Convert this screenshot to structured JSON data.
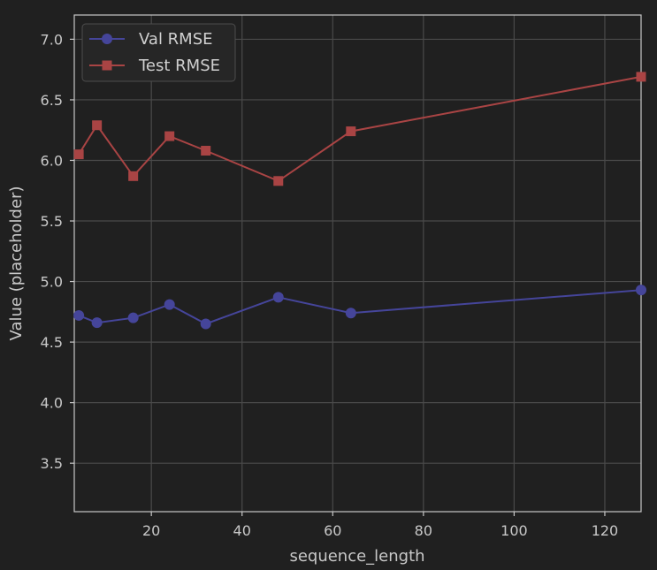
{
  "chart_data": {
    "type": "line",
    "xlabel": "sequence_length",
    "ylabel": "Value (placeholder)",
    "xlim": [
      3,
      128
    ],
    "ylim": [
      3.1,
      7.2
    ],
    "xticks": [
      20,
      40,
      60,
      80,
      100,
      120
    ],
    "yticks": [
      3.5,
      4.0,
      4.5,
      5.0,
      5.5,
      6.0,
      6.5,
      7.0
    ],
    "ytick_labels": [
      "3.5",
      "4.0",
      "4.5",
      "5.0",
      "5.5",
      "6.0",
      "6.5",
      "7.0"
    ],
    "grid": true,
    "legend_position": "top-left",
    "series": [
      {
        "name": "Val RMSE",
        "color": "#45459a",
        "marker": "circle",
        "x": [
          4,
          8,
          16,
          24,
          32,
          48,
          64,
          128
        ],
        "y": [
          4.72,
          4.66,
          4.7,
          4.81,
          4.65,
          4.87,
          4.74,
          4.93
        ]
      },
      {
        "name": "Test RMSE",
        "color": "#a94444",
        "marker": "square",
        "x": [
          4,
          8,
          16,
          24,
          32,
          48,
          64,
          128
        ],
        "y": [
          6.05,
          6.29,
          5.87,
          6.2,
          6.08,
          5.83,
          6.24,
          6.69
        ]
      }
    ]
  }
}
